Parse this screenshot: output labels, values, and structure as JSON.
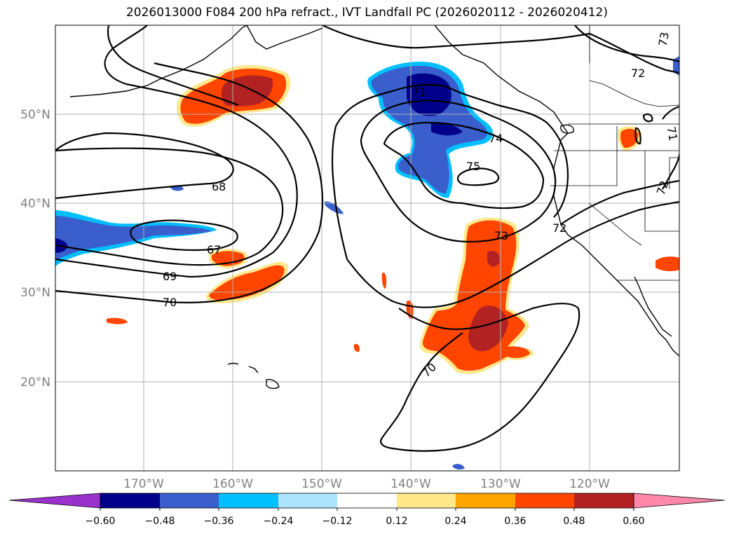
{
  "title": "2026013000 F084 200 hPa refract., IVT Landfall PC (2026020112 - 2026020412)",
  "map": {
    "longitude_labels": [
      "170°W",
      "160°W",
      "150°W",
      "140°W",
      "130°W",
      "120°W"
    ],
    "latitude_labels": [
      "50°N",
      "40°N",
      "30°N",
      "20°N"
    ],
    "extent": {
      "lon": [
        -180,
        -110
      ],
      "lat": [
        10,
        60
      ]
    },
    "contour_labels": [
      "68",
      "67",
      "69",
      "70",
      "71",
      "74",
      "75",
      "73",
      "72",
      "70",
      "72",
      "71",
      "72",
      "73"
    ]
  },
  "colorbar": {
    "ticks": [
      "−0.60",
      "−0.48",
      "−0.36",
      "−0.24",
      "−0.12",
      "0.12",
      "0.24",
      "0.36",
      "0.48",
      "0.60"
    ],
    "colors": [
      "#9932CC",
      "#00008B",
      "#3A5FCD",
      "#00BFFF",
      "#ADE4FF",
      "#FFFFFF",
      "#FFE88A",
      "#FFA500",
      "#FF4500",
      "#B22222",
      "#FF88AA"
    ]
  }
}
